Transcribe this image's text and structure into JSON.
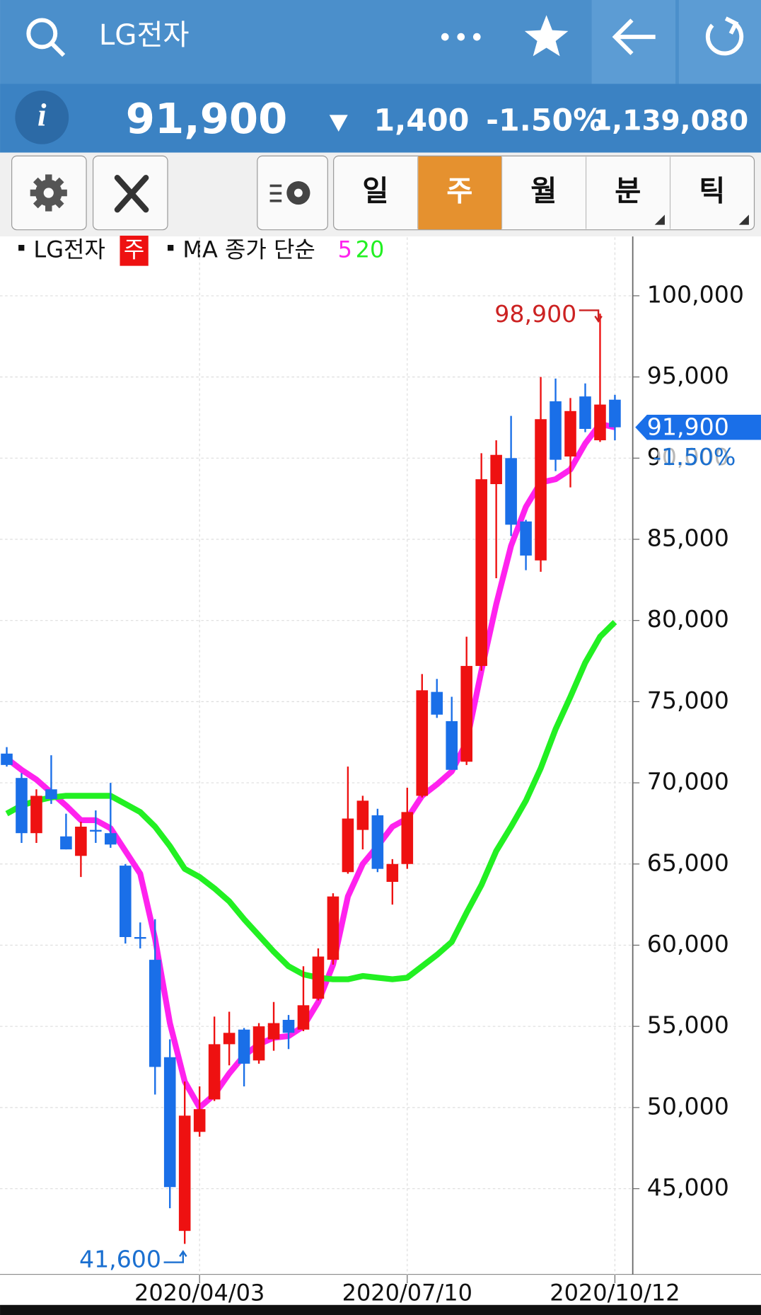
{
  "header": {
    "title": "LG전자",
    "price": "91,900",
    "change": "1,400",
    "change_pct": "-1.50%",
    "volume": "1,139,080"
  },
  "tabs": [
    "일",
    "주",
    "월",
    "분",
    "틱"
  ],
  "active_tab": "주",
  "chart_data": {
    "type": "candlestick",
    "legend": {
      "name": "LG전자",
      "period": "주",
      "ma_label": "MA 종가 단순"
    },
    "categories": [
      null,
      null,
      null,
      null,
      null,
      null,
      null,
      null,
      null,
      null,
      null,
      null,
      null,
      "2020/04/03",
      null,
      null,
      null,
      null,
      null,
      null,
      null,
      null,
      null,
      null,
      null,
      null,
      null,
      "2020/07/10",
      null,
      null,
      null,
      null,
      null,
      null,
      null,
      null,
      null,
      null,
      null,
      null,
      null,
      "2020/10/12"
    ],
    "open": [
      71800,
      70300,
      66900,
      69600,
      66700,
      65500,
      67100,
      66900,
      64900,
      60500,
      59100,
      53100,
      42400,
      48500,
      50500,
      53900,
      54800,
      52900,
      54200,
      55400,
      54800,
      56700,
      59100,
      64500,
      67100,
      68000,
      63900,
      65000,
      69200,
      75600,
      73800,
      71300,
      77200,
      88400,
      90000,
      86100,
      83700,
      93500,
      90100,
      93800,
      91100,
      93600
    ],
    "high": [
      72200,
      70600,
      69600,
      71700,
      68100,
      67600,
      68300,
      70000,
      65000,
      61400,
      61600,
      54200,
      51600,
      51300,
      55600,
      55900,
      54900,
      55200,
      56500,
      55700,
      58700,
      59800,
      63200,
      71000,
      69200,
      68400,
      65300,
      69700,
      76700,
      76400,
      75300,
      79000,
      90300,
      91100,
      92600,
      86200,
      95000,
      94900,
      93700,
      94600,
      98900,
      93900
    ],
    "low": [
      71000,
      66300,
      66300,
      68700,
      65900,
      64200,
      66300,
      66000,
      60100,
      59800,
      50800,
      43800,
      41600,
      48200,
      50400,
      52600,
      51300,
      52700,
      53500,
      53600,
      54700,
      56600,
      58800,
      64400,
      65900,
      64500,
      62500,
      64700,
      69100,
      74000,
      70800,
      71100,
      76900,
      82600,
      85200,
      83100,
      83000,
      89200,
      88200,
      91600,
      91000,
      91100
    ],
    "close": [
      71100,
      66900,
      69200,
      69000,
      65900,
      67300,
      67000,
      66200,
      60500,
      60400,
      52500,
      45100,
      49500,
      49900,
      53900,
      54600,
      52700,
      55000,
      55200,
      54600,
      56300,
      59300,
      63000,
      67800,
      68900,
      64700,
      65000,
      68200,
      75700,
      74200,
      70800,
      77200,
      88700,
      90200,
      85900,
      84000,
      92400,
      89900,
      92900,
      91800,
      93300,
      91900
    ],
    "up_color": "#ee1111",
    "down_color": "#1a6fe8",
    "series": [
      {
        "name": "5",
        "color": "#ff22ee",
        "values": [
          71500,
          70800,
          70200,
          69400,
          68600,
          67700,
          67700,
          67200,
          65800,
          64400,
          60400,
          55200,
          51600,
          50000,
          50800,
          52100,
          53200,
          53900,
          54300,
          54400,
          55000,
          56500,
          58800,
          63000,
          65000,
          66100,
          67300,
          67800,
          69200,
          69900,
          70700,
          72500,
          76900,
          81000,
          84600,
          87000,
          88500,
          88700,
          89300,
          90900,
          92100,
          91900
        ]
      },
      {
        "name": "20",
        "color": "#22f022",
        "values": [
          68100,
          68600,
          68900,
          69100,
          69200,
          69200,
          69200,
          69200,
          68700,
          68200,
          67300,
          66100,
          64700,
          64200,
          63500,
          62700,
          61600,
          60600,
          59600,
          58700,
          58200,
          58000,
          57900,
          57900,
          58100,
          58000,
          57900,
          58000,
          58700,
          59400,
          60200,
          62000,
          63700,
          65800,
          67300,
          68900,
          70900,
          73300,
          75300,
          77400,
          79000,
          79900
        ]
      }
    ],
    "ylim": [
      39700,
      103600
    ],
    "yticks": [
      {
        "value": 45000,
        "label": "45,000"
      },
      {
        "value": 50000,
        "label": "50,000"
      },
      {
        "value": 55000,
        "label": "55,000"
      },
      {
        "value": 60000,
        "label": "60,000"
      },
      {
        "value": 65000,
        "label": "65,000"
      },
      {
        "value": 70000,
        "label": "70,000"
      },
      {
        "value": 75000,
        "label": "75,000"
      },
      {
        "value": 80000,
        "label": "80,000"
      },
      {
        "value": 85000,
        "label": "85,000"
      },
      {
        "value": 90000,
        "label": "90,000"
      },
      {
        "value": 95000,
        "label": "95,000"
      },
      {
        "value": 100000,
        "label": "100,000"
      }
    ],
    "grid": true,
    "max_label": "98,900",
    "min_label": "41,600",
    "last_label": "91,900",
    "last_change_label": "-1.50%"
  }
}
